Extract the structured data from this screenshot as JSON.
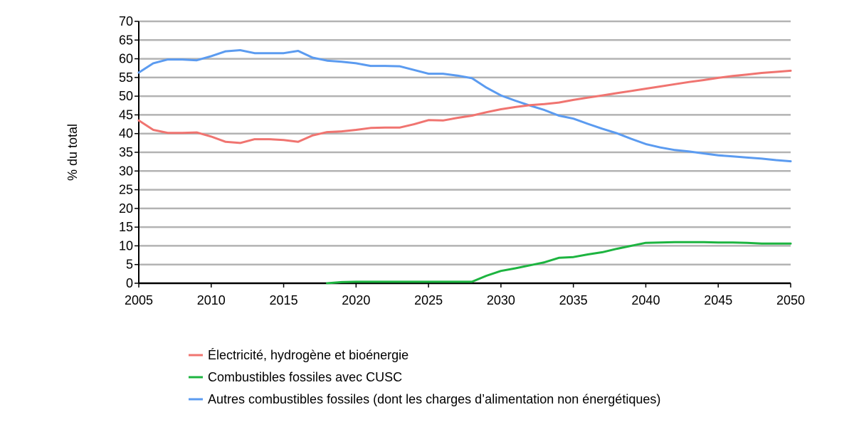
{
  "chart_data": {
    "type": "line",
    "title": "",
    "xlabel": "",
    "ylabel": "% du total",
    "xlim": [
      2005,
      2050
    ],
    "ylim": [
      0,
      70
    ],
    "x_ticks": [
      2005,
      2010,
      2015,
      2020,
      2025,
      2030,
      2035,
      2040,
      2045,
      2050
    ],
    "y_ticks": [
      0,
      5,
      10,
      15,
      20,
      25,
      30,
      35,
      40,
      45,
      50,
      55,
      60,
      65,
      70
    ],
    "grid": "horizontal",
    "legend_position": "bottom",
    "series": [
      {
        "name": "Électricité, hydrogène et bioénergie",
        "color": "#f07470",
        "points": [
          [
            2005,
            43.5
          ],
          [
            2006,
            41
          ],
          [
            2007,
            40.2
          ],
          [
            2008,
            40.2
          ],
          [
            2009,
            40.3
          ],
          [
            2010,
            39.2
          ],
          [
            2011,
            37.8
          ],
          [
            2012,
            37.5
          ],
          [
            2013,
            38.5
          ],
          [
            2014,
            38.5
          ],
          [
            2015,
            38.3
          ],
          [
            2016,
            37.8
          ],
          [
            2017,
            39.5
          ],
          [
            2018,
            40.4
          ],
          [
            2019,
            40.6
          ],
          [
            2020,
            41
          ],
          [
            2021,
            41.5
          ],
          [
            2022,
            41.6
          ],
          [
            2023,
            41.6
          ],
          [
            2024,
            42.5
          ],
          [
            2025,
            43.6
          ],
          [
            2026,
            43.5
          ],
          [
            2027,
            44.2
          ],
          [
            2028,
            44.8
          ],
          [
            2029,
            45.7
          ],
          [
            2030,
            46.5
          ],
          [
            2031,
            47.1
          ],
          [
            2032,
            47.6
          ],
          [
            2033,
            47.9
          ],
          [
            2034,
            48.3
          ],
          [
            2035,
            49
          ],
          [
            2036,
            49.6
          ],
          [
            2037,
            50.2
          ],
          [
            2038,
            50.8
          ],
          [
            2039,
            51.4
          ],
          [
            2040,
            52
          ],
          [
            2041,
            52.6
          ],
          [
            2042,
            53.2
          ],
          [
            2043,
            53.8
          ],
          [
            2044,
            54.3
          ],
          [
            2045,
            54.9
          ],
          [
            2046,
            55.4
          ],
          [
            2047,
            55.8
          ],
          [
            2048,
            56.2
          ],
          [
            2049,
            56.5
          ],
          [
            2050,
            56.8
          ]
        ]
      },
      {
        "name": "Combustibles fossiles avec CUSC",
        "color": "#1db440",
        "points": [
          [
            2018,
            0
          ],
          [
            2019,
            0.3
          ],
          [
            2020,
            0.4
          ],
          [
            2021,
            0.4
          ],
          [
            2022,
            0.4
          ],
          [
            2023,
            0.4
          ],
          [
            2024,
            0.4
          ],
          [
            2025,
            0.4
          ],
          [
            2026,
            0.4
          ],
          [
            2027,
            0.4
          ],
          [
            2028,
            0.4
          ],
          [
            2029,
            2
          ],
          [
            2030,
            3.3
          ],
          [
            2031,
            4
          ],
          [
            2032,
            4.8
          ],
          [
            2033,
            5.6
          ],
          [
            2034,
            6.8
          ],
          [
            2035,
            7
          ],
          [
            2036,
            7.7
          ],
          [
            2037,
            8.3
          ],
          [
            2038,
            9.2
          ],
          [
            2039,
            10
          ],
          [
            2040,
            10.8
          ],
          [
            2041,
            10.9
          ],
          [
            2042,
            11
          ],
          [
            2043,
            11
          ],
          [
            2044,
            11
          ],
          [
            2045,
            10.9
          ],
          [
            2046,
            10.9
          ],
          [
            2047,
            10.8
          ],
          [
            2048,
            10.6
          ],
          [
            2049,
            10.6
          ],
          [
            2050,
            10.6
          ]
        ]
      },
      {
        "name": "Autres combustibles fossiles (dont les charges d’alimentation non énergétiques)",
        "color": "#5b9bf0",
        "points": [
          [
            2005,
            56.3
          ],
          [
            2006,
            58.8
          ],
          [
            2007,
            59.8
          ],
          [
            2008,
            59.8
          ],
          [
            2009,
            59.6
          ],
          [
            2010,
            60.7
          ],
          [
            2011,
            62
          ],
          [
            2012,
            62.3
          ],
          [
            2013,
            61.5
          ],
          [
            2014,
            61.5
          ],
          [
            2015,
            61.5
          ],
          [
            2016,
            62.1
          ],
          [
            2017,
            60.3
          ],
          [
            2018,
            59.5
          ],
          [
            2019,
            59.2
          ],
          [
            2020,
            58.8
          ],
          [
            2021,
            58.1
          ],
          [
            2022,
            58.1
          ],
          [
            2023,
            58
          ],
          [
            2024,
            57
          ],
          [
            2025,
            56
          ],
          [
            2026,
            56
          ],
          [
            2027,
            55.5
          ],
          [
            2028,
            54.8
          ],
          [
            2029,
            52.3
          ],
          [
            2030,
            50.2
          ],
          [
            2031,
            48.8
          ],
          [
            2032,
            47.5
          ],
          [
            2033,
            46.3
          ],
          [
            2034,
            44.8
          ],
          [
            2035,
            44
          ],
          [
            2036,
            42.6
          ],
          [
            2037,
            41.3
          ],
          [
            2038,
            40.1
          ],
          [
            2039,
            38.6
          ],
          [
            2040,
            37.2
          ],
          [
            2041,
            36.3
          ],
          [
            2042,
            35.6
          ],
          [
            2043,
            35.2
          ],
          [
            2044,
            34.7
          ],
          [
            2045,
            34.2
          ],
          [
            2046,
            33.9
          ],
          [
            2047,
            33.6
          ],
          [
            2048,
            33.3
          ],
          [
            2049,
            32.9
          ],
          [
            2050,
            32.6
          ]
        ]
      }
    ]
  }
}
